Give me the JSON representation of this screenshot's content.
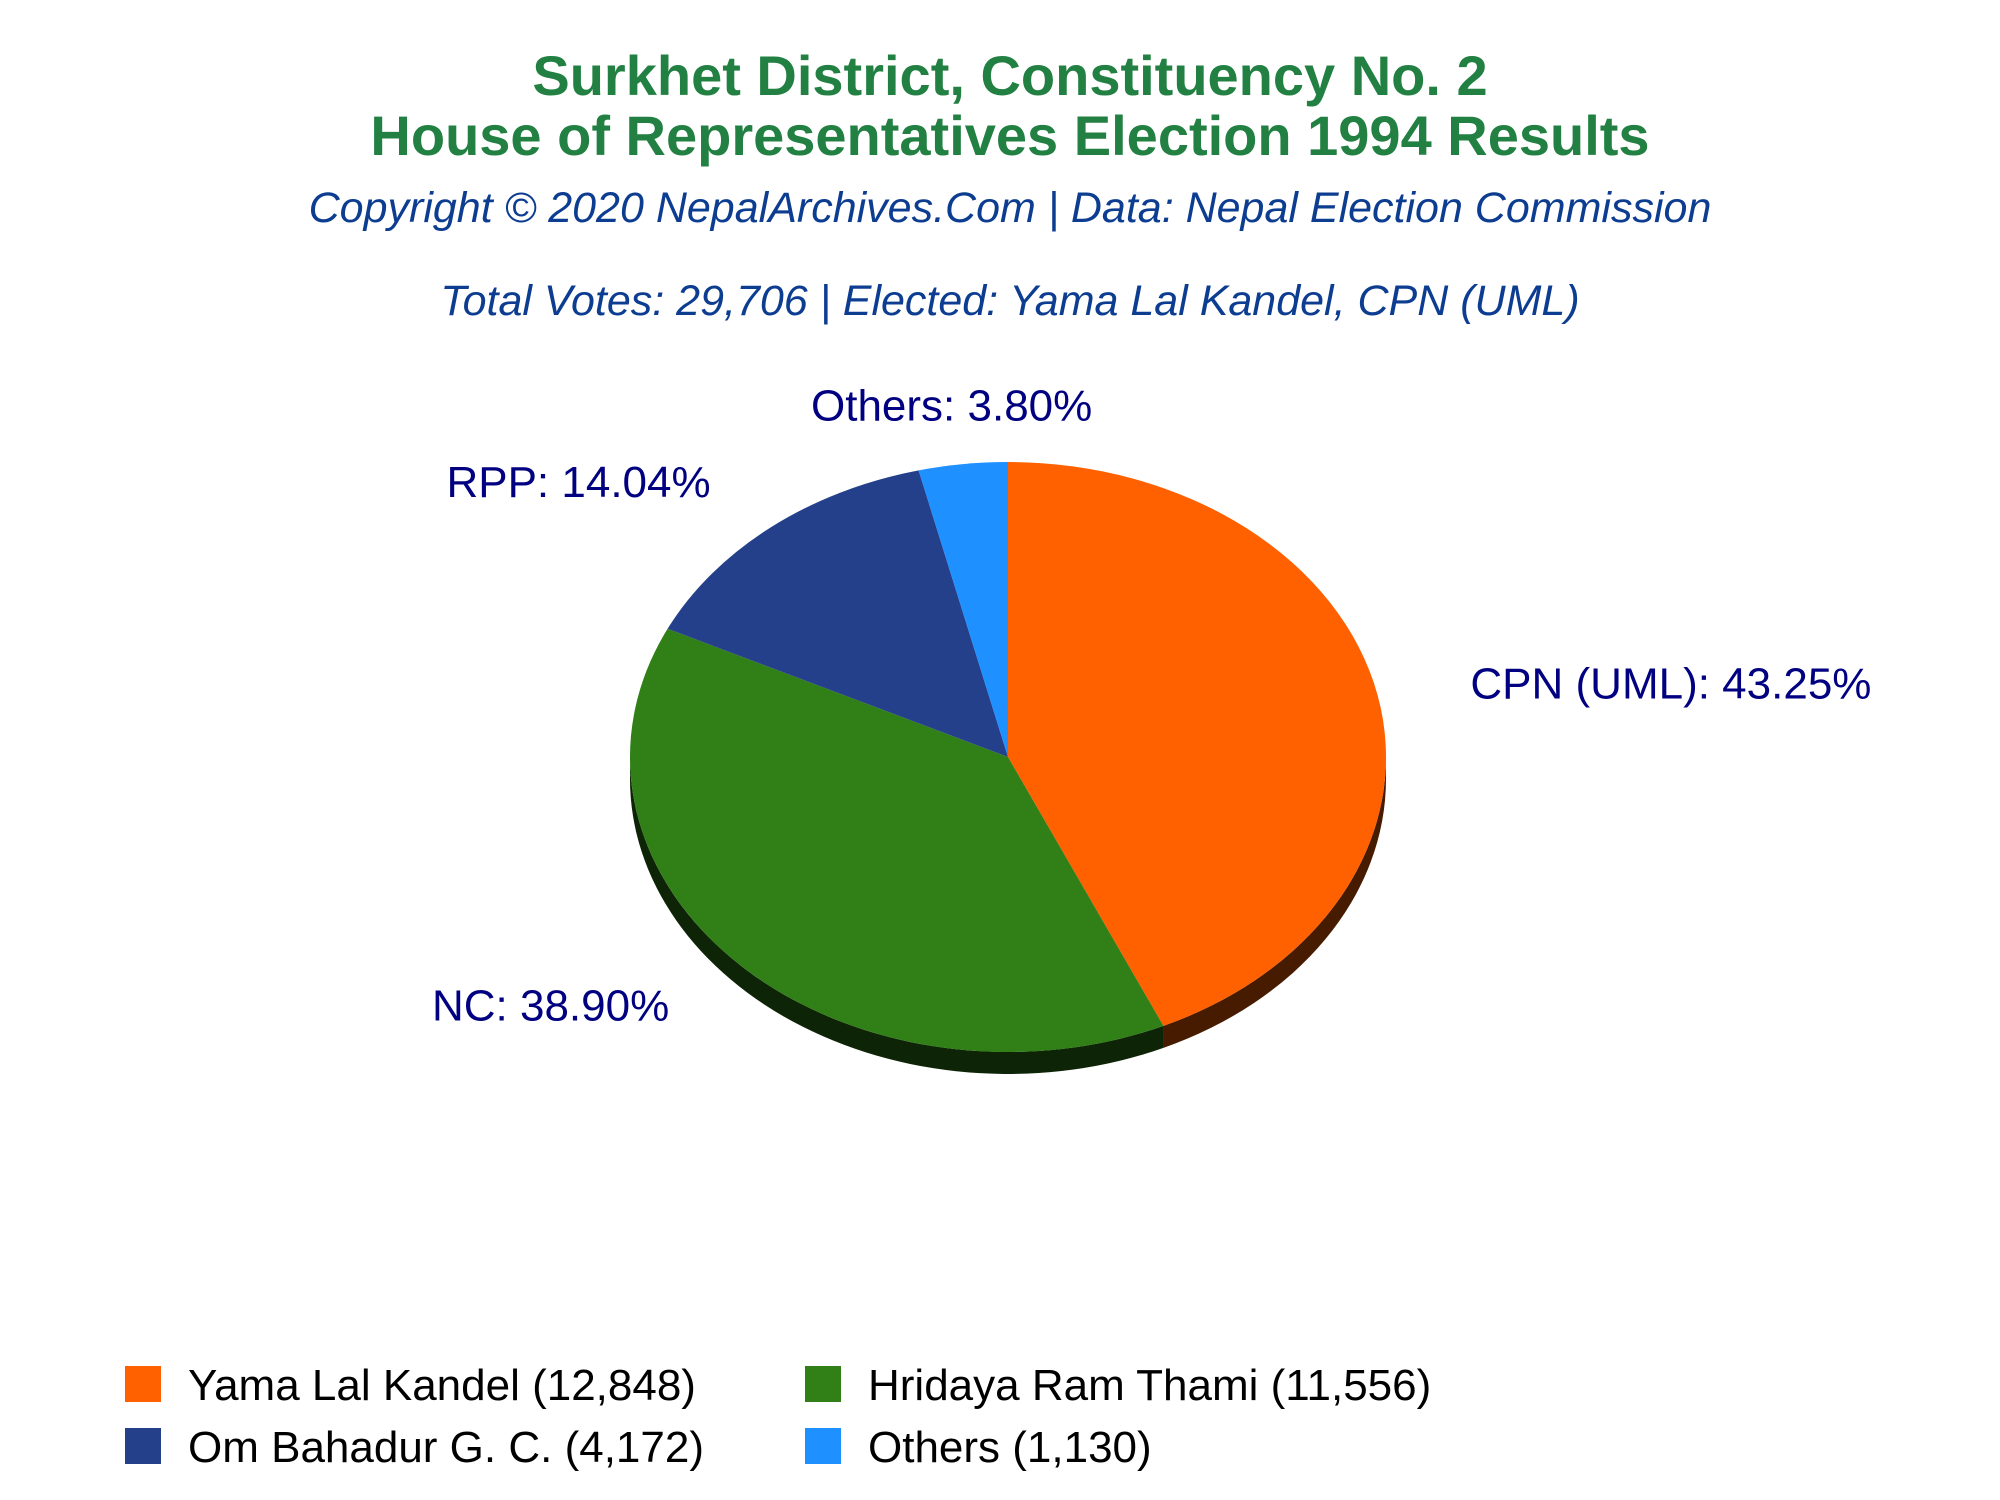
{
  "chart_data": {
    "type": "pie",
    "title": "Surkhet District, Constituency No. 2",
    "title_line2": "House of Representatives Election 1994 Results",
    "subtitle": "Copyright © 2020 NepalArchives.Com | Data: Nepal Election Commission",
    "summary": "Total Votes: 29,706 | Elected: Yama Lal Kandel, CPN (UML)",
    "slices": [
      {
        "party": "CPN (UML)",
        "percent": 43.25,
        "slice_label": "CPN (UML): 43.25%",
        "candidate": "Yama Lal Kandel",
        "votes": 12848,
        "legend_label": "Yama Lal Kandel (12,848)",
        "color": "#ff6100"
      },
      {
        "party": "NC",
        "percent": 38.9,
        "slice_label": "NC: 38.90%",
        "candidate": "Hridaya Ram Thami",
        "votes": 11556,
        "legend_label": "Hridaya Ram Thami (11,556)",
        "color": "#317f17"
      },
      {
        "party": "RPP",
        "percent": 14.04,
        "slice_label": "RPP: 14.04%",
        "candidate": "Om Bahadur G. C.",
        "votes": 4172,
        "legend_label": "Om Bahadur G. C. (4,172)",
        "color": "#25408a"
      },
      {
        "party": "Others",
        "percent": 3.8,
        "slice_label": "Others: 3.80%",
        "candidate": "Others",
        "votes": 1130,
        "legend_label": "Others (1,130)",
        "color": "#1e90ff"
      }
    ],
    "legend_position": "bottom",
    "colors": {
      "title": "#218042",
      "subtitle": "#0d3d91",
      "slice_label": "#000080",
      "legend_text": "#000000",
      "background": "#ffffff"
    }
  }
}
